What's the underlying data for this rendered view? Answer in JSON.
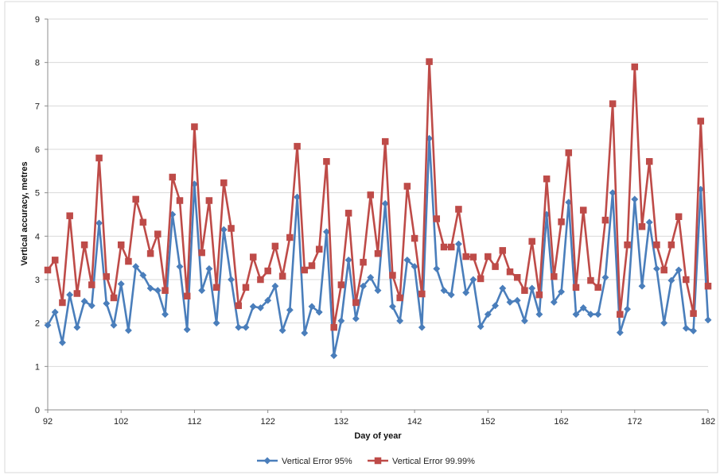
{
  "chart_data": {
    "type": "line",
    "title": "",
    "xlabel": "Day of year",
    "ylabel": "Vertical accuracy, metres",
    "xlim": [
      92,
      182
    ],
    "ylim": [
      0,
      9
    ],
    "x_ticks": [
      92,
      102,
      112,
      122,
      132,
      142,
      152,
      162,
      172,
      182
    ],
    "y_ticks": [
      0,
      1,
      2,
      3,
      4,
      5,
      6,
      7,
      8,
      9
    ],
    "grid": "horizontal",
    "legend_position": "bottom",
    "x": [
      92,
      93,
      94,
      95,
      96,
      97,
      98,
      99,
      100,
      101,
      102,
      103,
      104,
      105,
      106,
      107,
      108,
      109,
      110,
      111,
      112,
      113,
      114,
      115,
      116,
      117,
      118,
      119,
      120,
      121,
      122,
      123,
      124,
      125,
      126,
      127,
      128,
      129,
      130,
      131,
      132,
      133,
      134,
      135,
      136,
      137,
      138,
      139,
      140,
      141,
      142,
      143,
      144,
      145,
      146,
      147,
      148,
      149,
      150,
      151,
      152,
      153,
      154,
      155,
      156,
      157,
      158,
      159,
      160,
      161,
      162,
      163,
      164,
      165,
      166,
      167,
      168,
      169,
      170,
      171,
      172,
      173,
      174,
      175,
      176,
      177,
      178,
      179,
      180,
      181,
      182
    ],
    "series": [
      {
        "name": "Vertical Error 95%",
        "color": "#4a7ebb",
        "marker": "diamond",
        "values": [
          1.95,
          2.25,
          1.55,
          2.65,
          1.9,
          2.5,
          2.4,
          4.3,
          2.45,
          1.95,
          2.9,
          1.83,
          3.3,
          3.1,
          2.8,
          2.75,
          2.2,
          4.5,
          3.3,
          1.85,
          5.2,
          2.75,
          3.25,
          2.0,
          4.15,
          3.0,
          1.9,
          1.9,
          2.38,
          2.35,
          2.52,
          2.85,
          1.83,
          2.3,
          4.9,
          1.77,
          2.38,
          2.25,
          4.1,
          1.25,
          2.05,
          3.45,
          2.1,
          2.85,
          3.05,
          2.75,
          4.75,
          2.38,
          2.05,
          3.45,
          3.3,
          1.9,
          6.25,
          3.25,
          2.75,
          2.65,
          3.82,
          2.7,
          3.0,
          1.92,
          2.2,
          2.4,
          2.8,
          2.48,
          2.52,
          2.05,
          2.8,
          2.2,
          4.5,
          2.48,
          2.72,
          4.78,
          2.2,
          2.35,
          2.2,
          2.2,
          3.05,
          5.0,
          1.78,
          2.32,
          4.85,
          2.85,
          4.32,
          3.25,
          2.0,
          2.98,
          3.22,
          1.88,
          1.82,
          5.08,
          2.07
        ]
      },
      {
        "name": "Vertical Error 99.99%",
        "color": "#be4b48",
        "marker": "square",
        "values": [
          3.22,
          3.45,
          2.47,
          4.47,
          2.68,
          3.8,
          2.88,
          5.8,
          3.07,
          2.58,
          3.8,
          3.42,
          4.85,
          4.32,
          3.6,
          4.05,
          2.75,
          5.36,
          4.82,
          2.62,
          6.52,
          3.62,
          4.82,
          2.82,
          5.23,
          4.18,
          2.4,
          2.82,
          3.52,
          3.0,
          3.2,
          3.77,
          3.08,
          3.97,
          6.07,
          3.22,
          3.32,
          3.7,
          5.72,
          1.9,
          2.88,
          4.53,
          2.47,
          3.4,
          4.95,
          3.6,
          6.18,
          3.1,
          2.58,
          5.15,
          3.95,
          2.67,
          8.02,
          4.4,
          3.75,
          3.75,
          4.62,
          3.53,
          3.52,
          3.02,
          3.53,
          3.3,
          3.67,
          3.18,
          3.05,
          2.75,
          3.88,
          2.65,
          5.32,
          3.07,
          4.33,
          5.92,
          2.82,
          4.6,
          2.98,
          2.82,
          4.37,
          7.05,
          2.2,
          3.8,
          7.9,
          4.22,
          5.72,
          3.8,
          3.22,
          3.8,
          4.45,
          3.0,
          2.22,
          6.65,
          2.85
        ]
      }
    ]
  }
}
